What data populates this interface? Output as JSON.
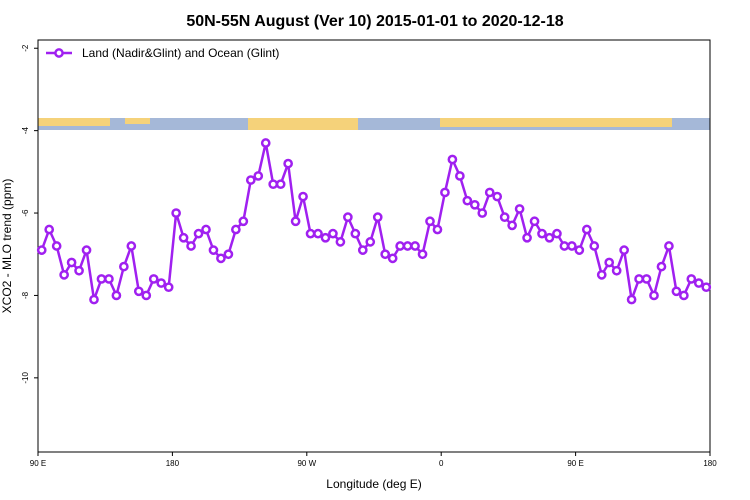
{
  "chart_data": {
    "type": "line",
    "title": "50N-55N August (Ver 10)   2015-01-01 to 2020-12-18",
    "xlabel": "Longitude (deg E)",
    "ylabel": "XCO2 - MLO trend (ppm)",
    "xlim": [
      90,
      540
    ],
    "ylim": [
      -11.8,
      -1.8
    ],
    "xticks": [
      {
        "value": 90,
        "label": "90 E"
      },
      180,
      {
        "value": 270,
        "label": "90 W"
      },
      {
        "value": 360,
        "label": "0"
      },
      {
        "value": 450,
        "label": "90 E"
      },
      {
        "value": 540,
        "label": "180"
      }
    ],
    "yticks": [
      -2,
      -4,
      -6,
      -8,
      -10
    ],
    "legend": "upper left",
    "x": [
      92.5,
      97.5,
      102.5,
      107.5,
      112.5,
      117.5,
      122.5,
      127.5,
      132.5,
      137.5,
      142.5,
      147.5,
      152.5,
      157.5,
      162.5,
      167.5,
      172.5,
      177.5,
      182.5,
      187.5,
      192.5,
      197.5,
      202.5,
      207.5,
      212.5,
      217.5,
      222.5,
      227.5,
      232.5,
      237.5,
      242.5,
      247.5,
      252.5,
      257.5,
      262.5,
      267.5,
      272.5,
      277.5,
      282.5,
      287.5,
      292.5,
      297.5,
      302.5,
      307.5,
      312.5,
      317.5,
      322.5,
      327.5,
      332.5,
      337.5,
      342.5,
      347.5,
      352.5,
      357.5,
      362.5,
      367.5,
      372.5,
      377.5,
      382.5,
      387.5,
      392.5,
      397.5,
      402.5,
      407.5,
      412.5,
      417.5,
      422.5,
      427.5,
      432.5,
      437.5,
      442.5,
      447.5,
      452.5,
      457.5,
      462.5,
      467.5,
      472.5,
      477.5,
      482.5,
      487.5,
      492.5,
      497.5,
      502.5,
      507.5,
      512.5,
      517.5,
      522.5,
      527.5,
      532.5,
      537.5
    ],
    "series": [
      {
        "name": "Land (Nadir&Glint) and Ocean (Glint)",
        "color": "#a020f0",
        "values": [
          -6.9,
          -6.4,
          -6.8,
          -7.5,
          -7.2,
          -7.4,
          -6.9,
          -8.1,
          -7.6,
          -7.6,
          -8.0,
          -7.3,
          -6.8,
          -7.9,
          -8.0,
          -7.6,
          -7.7,
          -7.8,
          -6.0,
          -6.6,
          -6.8,
          -6.5,
          -6.4,
          -6.9,
          -7.1,
          -7.0,
          -6.4,
          -6.2,
          -5.2,
          -5.1,
          -4.3,
          -5.3,
          -5.3,
          -4.8,
          -6.2,
          -5.6,
          -6.5,
          -6.5,
          -6.6,
          -6.5,
          -6.7,
          -6.1,
          -6.5,
          -6.9,
          -6.7,
          -6.1,
          -7.0,
          -7.1,
          -6.8,
          -6.8,
          -6.8,
          -7.0,
          -6.2,
          -6.4,
          -5.5,
          -4.7,
          -5.1,
          -5.7,
          -5.8,
          -6.0,
          -5.5,
          -5.6,
          -6.1,
          -6.3,
          -5.9,
          -6.6,
          -6.2,
          -6.5,
          -6.6,
          -6.5,
          -6.8,
          -6.8,
          -6.9,
          -6.4,
          -6.8,
          -7.5,
          -7.2,
          -7.4,
          -6.9,
          -8.1,
          -7.6,
          -7.6,
          -8.0,
          -7.3,
          -6.8,
          -7.9,
          -8.0,
          -7.6,
          -7.7,
          -7.8
        ]
      }
    ]
  }
}
